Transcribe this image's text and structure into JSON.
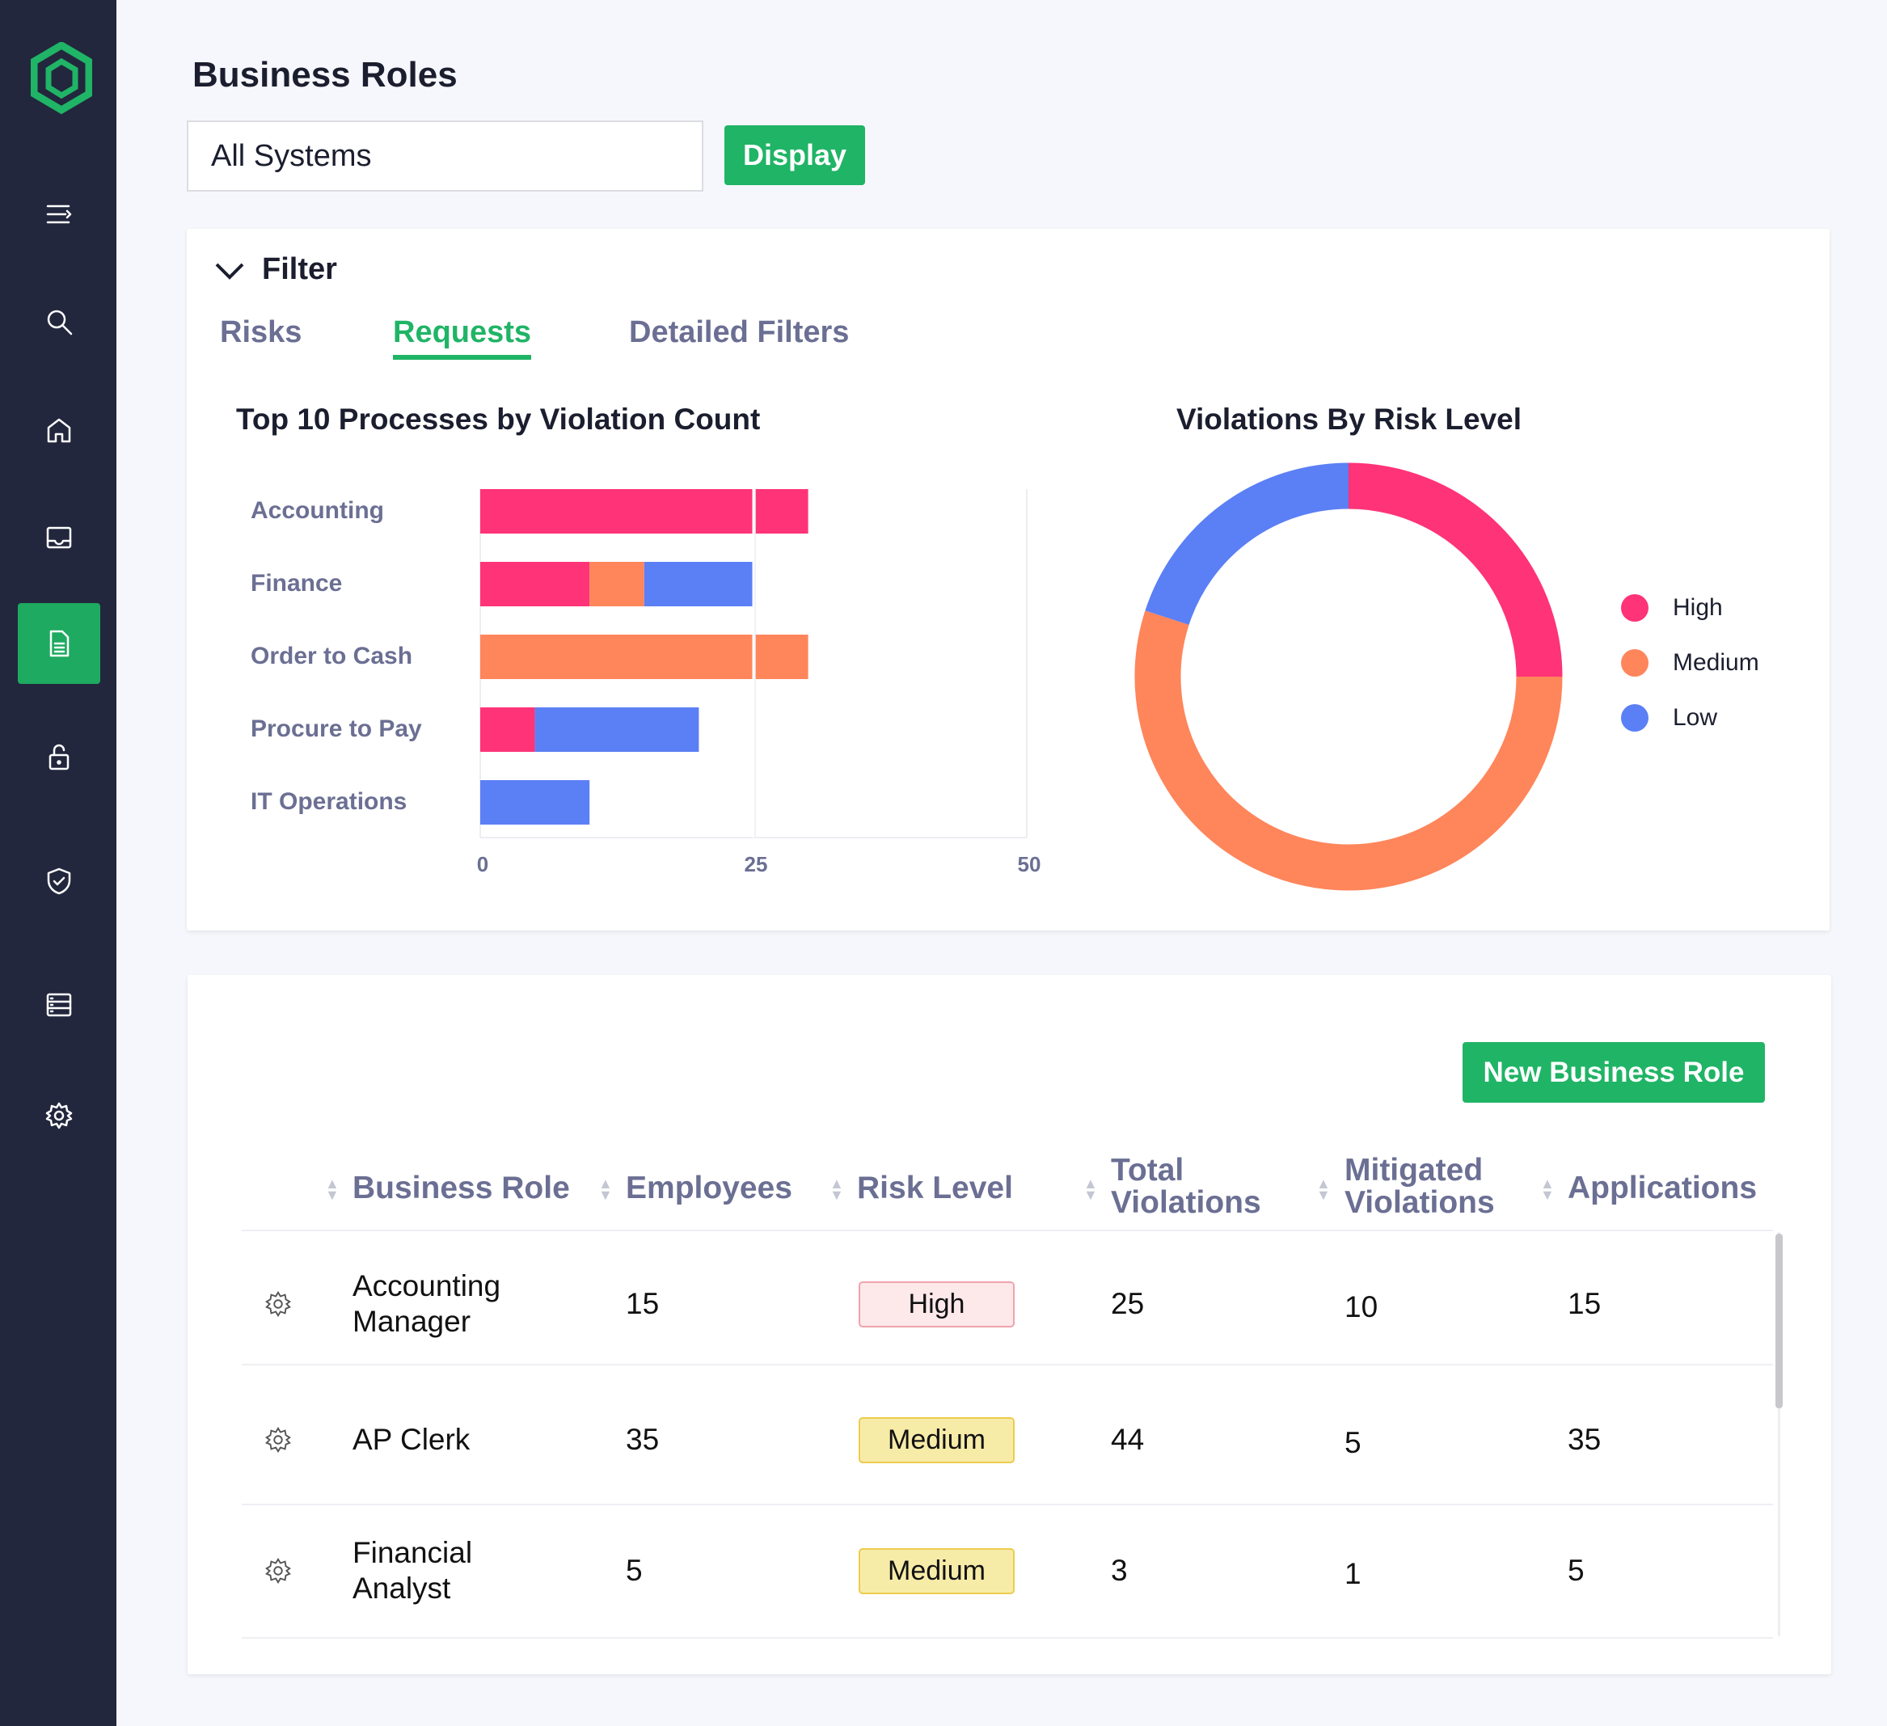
{
  "page": {
    "title": "Business Roles"
  },
  "toolbar": {
    "system_select": "All Systems",
    "display_label": "Display"
  },
  "sidebar": {
    "items": [
      {
        "icon": "menu-icon"
      },
      {
        "icon": "search-icon"
      },
      {
        "icon": "home-icon"
      },
      {
        "icon": "inbox-icon"
      },
      {
        "icon": "document-icon",
        "active": true
      },
      {
        "icon": "unlock-icon"
      },
      {
        "icon": "shield-check-icon"
      },
      {
        "icon": "server-icon"
      },
      {
        "icon": "gear-icon"
      }
    ]
  },
  "filter": {
    "label": "Filter",
    "tabs": [
      {
        "label": "Risks"
      },
      {
        "label": "Requests",
        "active": true
      },
      {
        "label": "Detailed Filters"
      }
    ]
  },
  "colors": {
    "High": "#ff3377",
    "Medium": "#ff855b",
    "Low": "#5b7ff5",
    "accent": "#20b466"
  },
  "chart_data": [
    {
      "type": "bar",
      "orientation": "horizontal",
      "stacked": true,
      "title": "Top 10 Processes by Violation Count",
      "categories": [
        "Accounting",
        "Finance",
        "Order to Cash",
        "Procure to Pay",
        "IT Operations"
      ],
      "series": [
        {
          "key": "High",
          "values": [
            30,
            10,
            0,
            5,
            0
          ]
        },
        {
          "key": "Medium",
          "values": [
            0,
            5,
            30,
            0,
            0
          ]
        },
        {
          "key": "Low",
          "values": [
            0,
            10,
            0,
            15,
            10
          ]
        }
      ],
      "xlim": [
        0,
        50
      ],
      "xticks": [
        "0",
        "25",
        "50"
      ],
      "grid": true
    },
    {
      "type": "pie",
      "donut": true,
      "title": "Violations By Risk Level",
      "labels": [
        "High",
        "Medium",
        "Low"
      ],
      "values": [
        25,
        55,
        20
      ],
      "legend": "right"
    }
  ],
  "table": {
    "new_button": "New Business Role",
    "columns": [
      "Business Role",
      "Employees",
      "Risk Level",
      "Total Violations",
      "Mitigated Violations",
      "Applications"
    ],
    "rows": [
      {
        "role": "Accounting Manager",
        "employees": "15",
        "risk": "High",
        "total": "25",
        "mitigated": "10",
        "applications": "15"
      },
      {
        "role": "AP Clerk",
        "employees": "35",
        "risk": "Medium",
        "total": "44",
        "mitigated": "5",
        "applications": "35"
      },
      {
        "role": "Financial Analyst",
        "employees": "5",
        "risk": "Medium",
        "total": "3",
        "mitigated": "1",
        "applications": "5"
      }
    ]
  }
}
